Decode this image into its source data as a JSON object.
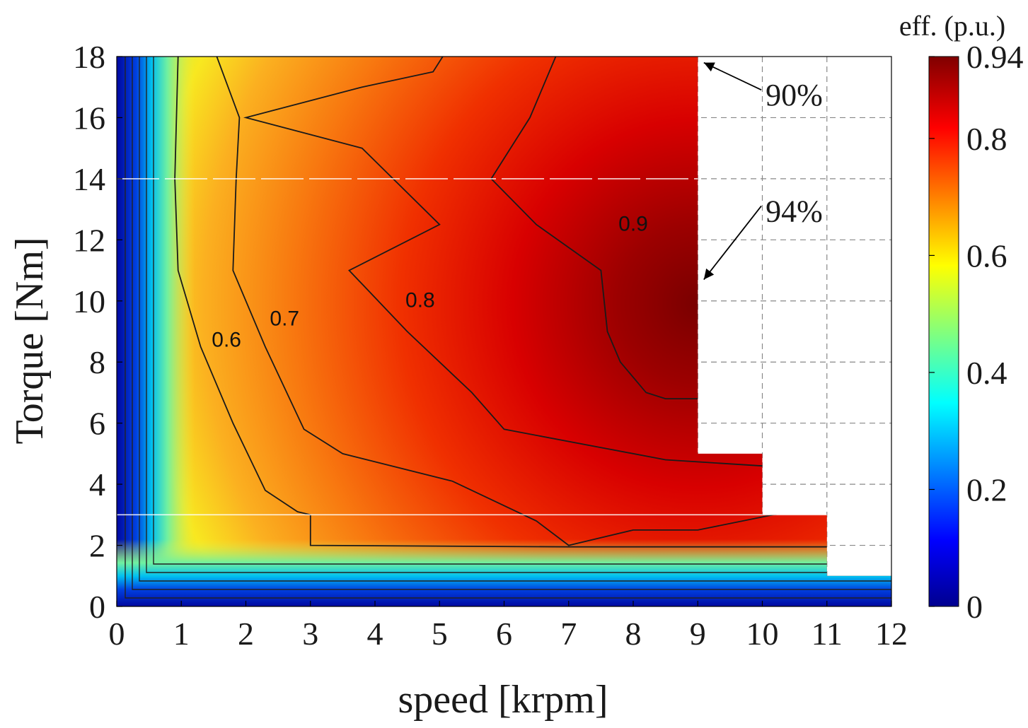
{
  "chart_data": {
    "type": "heatmap",
    "subtype": "filled-contour",
    "xlabel": "speed [krpm]",
    "ylabel": "Torque [Nm]",
    "xlim": [
      0,
      12
    ],
    "ylim": [
      0,
      18
    ],
    "xticks": [
      0,
      1,
      2,
      3,
      4,
      5,
      6,
      7,
      8,
      9,
      10,
      11,
      12
    ],
    "yticks": [
      0,
      2,
      4,
      6,
      8,
      10,
      12,
      14,
      16,
      18
    ],
    "grid": true,
    "grid_style": "dashed",
    "colorbar": {
      "title": "eff. (p.u.)",
      "range": [
        0,
        0.94
      ],
      "ticks": [
        0,
        0.2,
        0.4,
        0.6,
        0.8,
        0.94
      ],
      "tick_labels": [
        "0",
        "0.2",
        "0.4",
        "0.6",
        "0.8",
        "0.94"
      ],
      "colormap": "jet"
    },
    "operating_region_boundary": [
      {
        "speed": 0,
        "torque": 18
      },
      {
        "speed": 9,
        "torque": 18
      },
      {
        "speed": 9,
        "torque": 5
      },
      {
        "speed": 10,
        "torque": 5
      },
      {
        "speed": 10,
        "torque": 3
      },
      {
        "speed": 11,
        "torque": 3
      },
      {
        "speed": 11,
        "torque": 1
      },
      {
        "speed": 12,
        "torque": 1
      },
      {
        "speed": 12,
        "torque": 0
      },
      {
        "speed": 0,
        "torque": 0
      }
    ],
    "peak_efficiency": {
      "speed": 9,
      "torque": 10.5,
      "value": 0.94
    },
    "contours": [
      {
        "level": 0.6,
        "label": "0.6",
        "label_at": {
          "speed": 1.7,
          "torque": 8.5
        },
        "points": [
          [
            0.95,
            18
          ],
          [
            0.9,
            14
          ],
          [
            0.95,
            11
          ],
          [
            1.3,
            8.5
          ],
          [
            1.8,
            6
          ],
          [
            2.3,
            3.8
          ],
          [
            2.8,
            3.1
          ],
          [
            3.0,
            3.0
          ],
          [
            3.0,
            2.0
          ],
          [
            7.0,
            1.95
          ],
          [
            11.0,
            1.95
          ]
        ]
      },
      {
        "level": 0.7,
        "label": "0.7",
        "label_at": {
          "speed": 2.6,
          "torque": 9.2
        },
        "points": [
          [
            1.55,
            18
          ],
          [
            1.9,
            16
          ],
          [
            1.85,
            14
          ],
          [
            1.8,
            11
          ],
          [
            2.3,
            8.5
          ],
          [
            2.9,
            5.8
          ],
          [
            3.5,
            5.0
          ],
          [
            5.2,
            4.1
          ],
          [
            6.5,
            2.8
          ],
          [
            7.0,
            2.0
          ],
          [
            8.0,
            2.5
          ],
          [
            9.0,
            2.5
          ],
          [
            10.4,
            3.1
          ]
        ]
      },
      {
        "level": 0.8,
        "label": "0.8",
        "label_at": {
          "speed": 4.7,
          "torque": 9.8
        },
        "points": [
          [
            5.05,
            18
          ],
          [
            4.9,
            17.5
          ],
          [
            3.8,
            17.0
          ],
          [
            2.0,
            16.0
          ],
          [
            3.8,
            15.0
          ],
          [
            5.0,
            12.5
          ],
          [
            3.6,
            11.0
          ],
          [
            4.5,
            9.0
          ],
          [
            5.5,
            7.0
          ],
          [
            6.0,
            5.8
          ],
          [
            7.5,
            5.2
          ],
          [
            8.5,
            4.8
          ],
          [
            10.0,
            4.6
          ]
        ]
      },
      {
        "level": 0.9,
        "label": "0.9",
        "label_at": {
          "speed": 8.0,
          "torque": 12.3
        },
        "points": [
          [
            6.8,
            18
          ],
          [
            6.4,
            16
          ],
          [
            5.8,
            14
          ],
          [
            6.5,
            12.5
          ],
          [
            7.5,
            11.0
          ],
          [
            7.6,
            9.0
          ],
          [
            7.8,
            8.0
          ],
          [
            8.2,
            7.0
          ],
          [
            8.5,
            6.8
          ],
          [
            9.0,
            6.8
          ]
        ]
      }
    ],
    "annotations": [
      {
        "text": "90%",
        "label_at": {
          "speed": 10.05,
          "torque": 16.4
        },
        "points_to": {
          "speed": 9.05,
          "torque": 17.8
        }
      },
      {
        "text": "94%",
        "label_at": {
          "speed": 10.05,
          "torque": 12.6
        },
        "points_to": {
          "speed": 9.05,
          "torque": 10.7
        }
      }
    ]
  }
}
